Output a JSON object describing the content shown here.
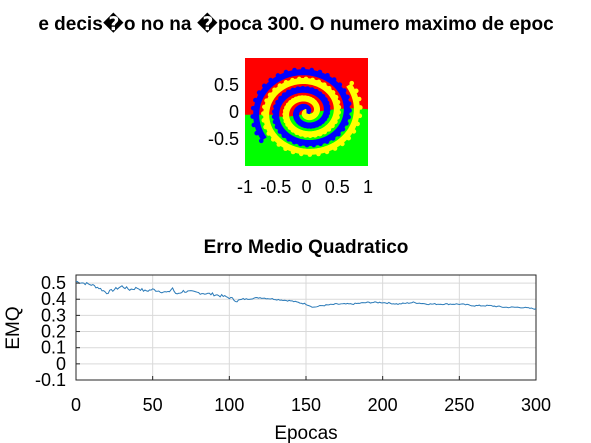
{
  "figure_title": "e decis�o no na �poca 300. O numero maximo de epoc",
  "colors": {
    "region_top": "#ff0000",
    "region_bottom": "#00ff00",
    "spiral_a": "#0000ff",
    "spiral_b": "#ffff00",
    "spiral_a_dot": "#0000ff",
    "spiral_b_dot": "#ffff00",
    "line": "#2a7ab8",
    "grid": "#d9d9d9"
  },
  "chart_data": [
    {
      "type": "scatter",
      "title": "",
      "xlabel": "",
      "ylabel": "",
      "xlim": [
        -1,
        1
      ],
      "ylim": [
        -1,
        1
      ],
      "x_ticks": [
        -1,
        -0.5,
        0,
        0.5,
        1
      ],
      "x_tick_labels": [
        "-1",
        "-0.5",
        "0",
        "0.5",
        "1"
      ],
      "y_ticks": [
        0.5,
        0,
        -0.5
      ],
      "y_tick_labels": [
        "0.5",
        "0",
        "-0.5"
      ],
      "background_regions": [
        "class 1 (red) upper region",
        "class 2 (green) lower region"
      ],
      "spiral": {
        "turns": 2.6,
        "max_radius": 0.85,
        "points_per_arm": 70
      }
    },
    {
      "type": "line",
      "title": "Erro Medio Quadratico",
      "xlabel": "Epocas",
      "ylabel": "EMQ",
      "xlim": [
        0,
        300
      ],
      "ylim": [
        -0.1,
        0.55
      ],
      "grid": true,
      "x_ticks": [
        0,
        50,
        100,
        150,
        200,
        250,
        300
      ],
      "x_tick_labels": [
        "0",
        "50",
        "100",
        "150",
        "200",
        "250",
        "300"
      ],
      "y_ticks": [
        0.5,
        0.4,
        0.3,
        0.2,
        0.1,
        0,
        -0.1
      ],
      "y_tick_labels": [
        "0.5",
        "0.4",
        "0.3",
        "0.2",
        "0.1",
        "0",
        "-0.1"
      ],
      "x": [
        0,
        5,
        10,
        15,
        20,
        25,
        30,
        35,
        40,
        45,
        50,
        55,
        60,
        63,
        65,
        70,
        80,
        90,
        100,
        105,
        110,
        120,
        130,
        140,
        150,
        155,
        160,
        170,
        180,
        190,
        200,
        210,
        220,
        230,
        240,
        250,
        260,
        270,
        280,
        290,
        300
      ],
      "y": [
        0.51,
        0.5,
        0.49,
        0.47,
        0.44,
        0.46,
        0.48,
        0.46,
        0.47,
        0.45,
        0.46,
        0.45,
        0.44,
        0.47,
        0.43,
        0.45,
        0.44,
        0.43,
        0.41,
        0.39,
        0.4,
        0.41,
        0.4,
        0.39,
        0.37,
        0.35,
        0.36,
        0.37,
        0.37,
        0.38,
        0.38,
        0.37,
        0.38,
        0.37,
        0.37,
        0.37,
        0.36,
        0.36,
        0.35,
        0.35,
        0.34
      ]
    }
  ]
}
